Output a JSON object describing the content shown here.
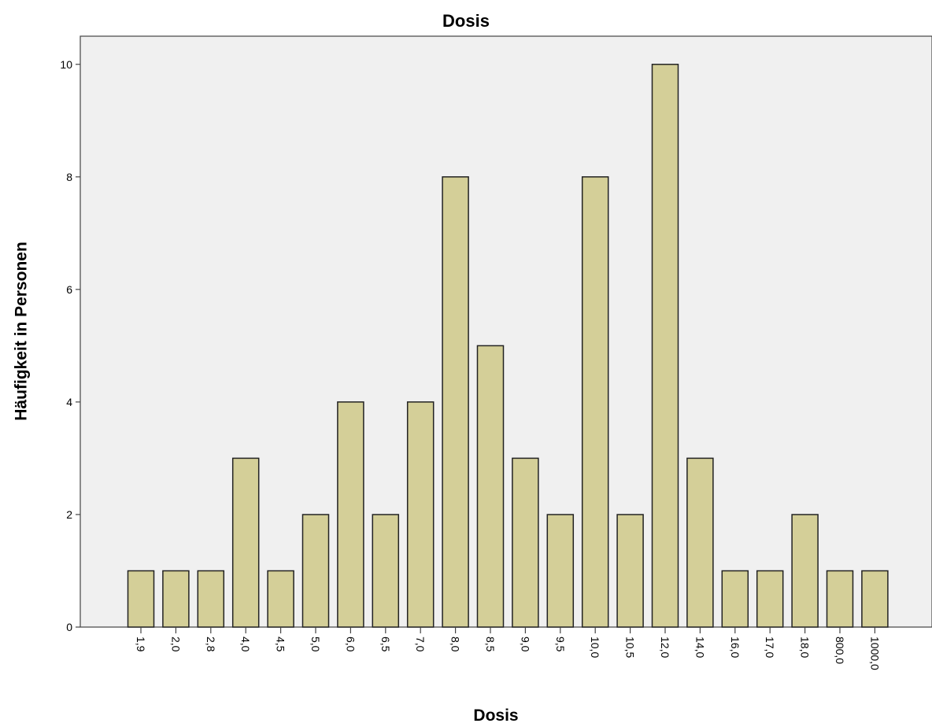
{
  "chart_data": {
    "type": "bar",
    "title": "Dosis",
    "xlabel": "Dosis",
    "ylabel": "Häufigkeit in Personen",
    "categories": [
      "1,9",
      "2,0",
      "2,8",
      "4,0",
      "4,5",
      "5,0",
      "6,0",
      "6,5",
      "7,0",
      "8,0",
      "8,5",
      "9,0",
      "9,5",
      "10,0",
      "10,5",
      "12,0",
      "14,0",
      "16,0",
      "17,0",
      "18,0",
      "800,0",
      "1000,0"
    ],
    "values": [
      1,
      1,
      1,
      3,
      1,
      2,
      4,
      2,
      4,
      8,
      5,
      3,
      2,
      8,
      2,
      10,
      3,
      1,
      1,
      2,
      1,
      1
    ],
    "ylim": [
      0,
      10.5
    ],
    "yticks": [
      0,
      2,
      4,
      6,
      8,
      10
    ],
    "grid": false,
    "colors": {
      "bar_fill": "#d4cf98",
      "bar_stroke": "#222222",
      "plot_background": "#f0f0f0",
      "axis": "#444444"
    }
  }
}
